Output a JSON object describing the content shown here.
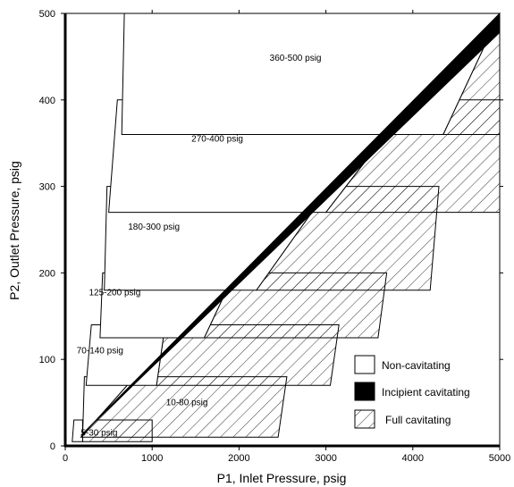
{
  "chart_data": {
    "type": "area",
    "title": "",
    "xlabel": "P1, Inlet Pressure, psig",
    "ylabel": "P2, Outlet Pressure, psig",
    "xlim": [
      0,
      5000
    ],
    "ylim": [
      0,
      500
    ],
    "x_ticks": [
      0,
      1000,
      2000,
      3000,
      4000,
      5000
    ],
    "y_ticks": [
      0,
      100,
      200,
      300,
      400,
      500
    ],
    "grid": false,
    "legend_position": "lower-right",
    "legend": [
      {
        "key": "non",
        "label": "Non-cavitating",
        "fill": "white"
      },
      {
        "key": "inc",
        "label": "Incipient cavitating",
        "fill": "black"
      },
      {
        "key": "full",
        "label": "Full cavitating",
        "fill": "hatched"
      }
    ],
    "incipient_band": {
      "lower": [
        [
          180,
          12
        ],
        [
          5000,
          478
        ]
      ],
      "upper": [
        [
          180,
          12
        ],
        [
          5000,
          500
        ]
      ]
    },
    "bands": [
      {
        "label": "5-30 psig",
        "p2_min": 5,
        "p2_max": 30,
        "non_left": [
          [
            80,
            5
          ],
          [
            100,
            30
          ]
        ],
        "non_right": [
          [
            200,
            5
          ],
          [
            200,
            30
          ]
        ],
        "full_right": [
          [
            1000,
            5
          ],
          [
            1000,
            30
          ]
        ],
        "label_at": [
          390,
          12
        ]
      },
      {
        "label": "10-80 psig",
        "p2_min": 10,
        "p2_max": 80,
        "non_left": [
          [
            200,
            10
          ],
          [
            220,
            80
          ]
        ],
        "non_right": [
          [
            180,
            10
          ],
          [
            800,
            80
          ]
        ],
        "full_right": [
          [
            2450,
            10
          ],
          [
            2550,
            80
          ]
        ],
        "label_at": [
          1400,
          47
        ]
      },
      {
        "label": "70-140 psig",
        "p2_min": 70,
        "p2_max": 140,
        "non_left": [
          [
            240,
            70
          ],
          [
            300,
            140
          ]
        ],
        "non_right": [
          [
            1050,
            70
          ],
          [
            1150,
            140
          ]
        ],
        "full_right": [
          [
            3050,
            70
          ],
          [
            3150,
            140
          ]
        ],
        "label_at": [
          400,
          107
        ]
      },
      {
        "label": "125-200 psig",
        "p2_min": 125,
        "p2_max": 200,
        "non_left": [
          [
            400,
            125
          ],
          [
            430,
            200
          ]
        ],
        "non_right": [
          [
            1600,
            125
          ],
          [
            1950,
            200
          ]
        ],
        "full_right": [
          [
            3600,
            125
          ],
          [
            3700,
            200
          ]
        ],
        "label_at": [
          570,
          174
        ]
      },
      {
        "label": "180-300 psig",
        "p2_min": 180,
        "p2_max": 300,
        "non_left": [
          [
            450,
            180
          ],
          [
            480,
            300
          ]
        ],
        "non_right": [
          [
            2200,
            180
          ],
          [
            3050,
            300
          ]
        ],
        "full_right": [
          [
            4200,
            180
          ],
          [
            4300,
            300
          ]
        ],
        "label_at": [
          1020,
          250
        ]
      },
      {
        "label": "270-400 psig",
        "p2_min": 270,
        "p2_max": 400,
        "non_left": [
          [
            500,
            270
          ],
          [
            600,
            400
          ]
        ],
        "non_right": [
          [
            3000,
            270
          ],
          [
            4000,
            400
          ]
        ],
        "full_right": [
          [
            5000,
            270
          ],
          [
            5000,
            400
          ]
        ],
        "label_at": [
          1750,
          352
        ]
      },
      {
        "label": "360-500 psig",
        "p2_min": 360,
        "p2_max": 500,
        "non_left": [
          [
            650,
            360
          ],
          [
            680,
            500
          ]
        ],
        "non_right": [
          [
            4350,
            360
          ],
          [
            5000,
            500
          ]
        ],
        "full_right": [
          [
            5000,
            360
          ],
          [
            5000,
            500
          ]
        ],
        "label_at": [
          2650,
          445
        ]
      }
    ]
  }
}
